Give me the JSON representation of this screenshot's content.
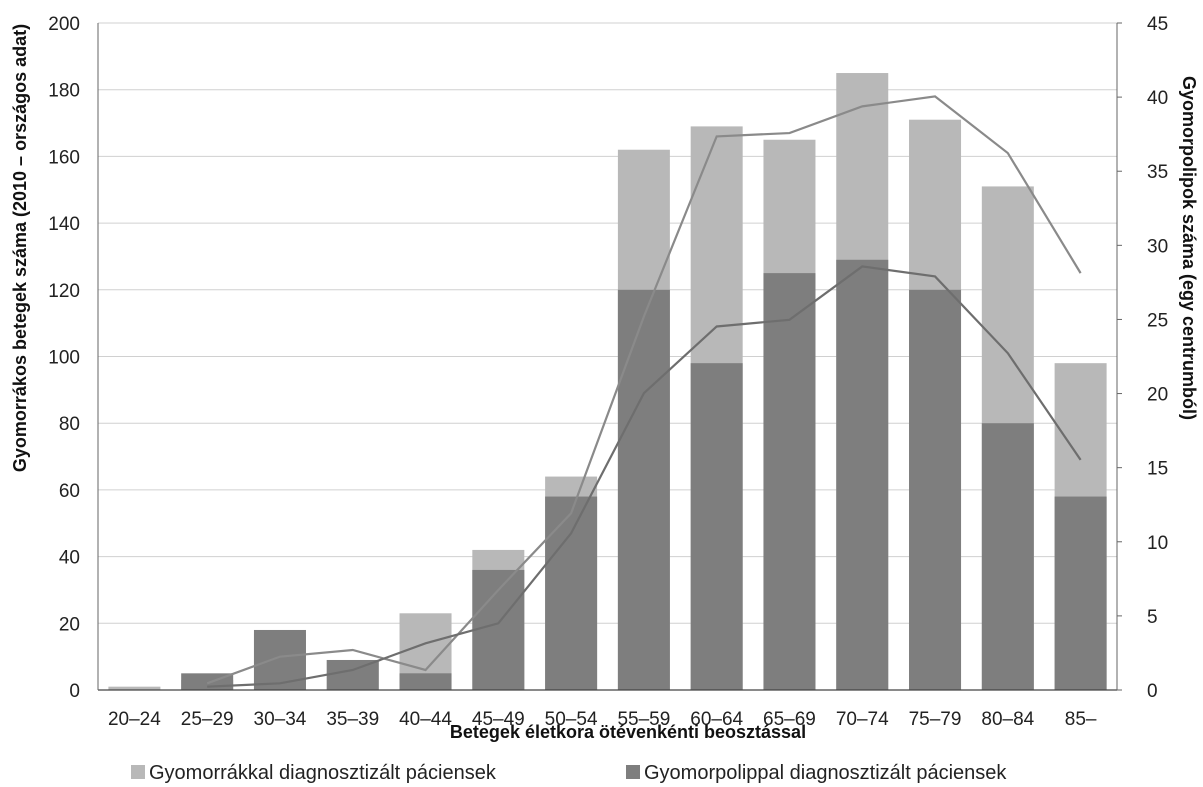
{
  "chart_data": {
    "type": "bar",
    "categories": [
      "20–24",
      "25–29",
      "30–34",
      "35–39",
      "40–44",
      "45–49",
      "50–54",
      "55–59",
      "60–64",
      "65–69",
      "70–74",
      "75–79",
      "80–84",
      "85–"
    ],
    "xlabel": "Betegek életkora ötévenkénti beosztással",
    "ylabel_left": "Gyomorrákos betegek száma (2010 – országos adat)",
    "ylabel_right": "Gyomorpolipok száma (egy centrumból)",
    "ylim_left": [
      0,
      200
    ],
    "ylim_right": [
      0,
      45
    ],
    "yticks_left": [
      "0",
      "20",
      "40",
      "60",
      "80",
      "100",
      "120",
      "140",
      "160",
      "180",
      "200"
    ],
    "yticks_right": [
      "0",
      "5",
      "10",
      "15",
      "20",
      "25",
      "30",
      "35",
      "40",
      "45"
    ],
    "grid": true,
    "legend_position": "bottom",
    "series": [
      {
        "name": "Gyomorrákkal diagnosztizált páciensek",
        "kind": "bar",
        "axis": "left",
        "color": "#b8b8b8",
        "values": [
          1,
          3,
          17,
          9,
          23,
          42,
          64,
          162,
          169,
          165,
          185,
          171,
          151,
          98
        ]
      },
      {
        "name": "Gyomorpolippal diagnosztizált páciensek",
        "kind": "bar",
        "axis": "left",
        "color": "#7e7e7e",
        "values": [
          0,
          5,
          18,
          9,
          5,
          36,
          58,
          120,
          98,
          125,
          129,
          120,
          80,
          58
        ]
      }
    ],
    "lines": [
      {
        "axis": "left",
        "color": "#8a8a8a",
        "values": [
          null,
          2,
          10,
          12,
          6,
          30,
          53,
          112,
          166,
          167,
          175,
          178,
          161,
          125
        ]
      },
      {
        "axis": "left",
        "color": "#6e6e6e",
        "values": [
          null,
          1,
          2,
          6,
          14,
          20,
          47,
          89,
          109,
          111,
          127,
          124,
          101,
          69
        ]
      }
    ]
  }
}
